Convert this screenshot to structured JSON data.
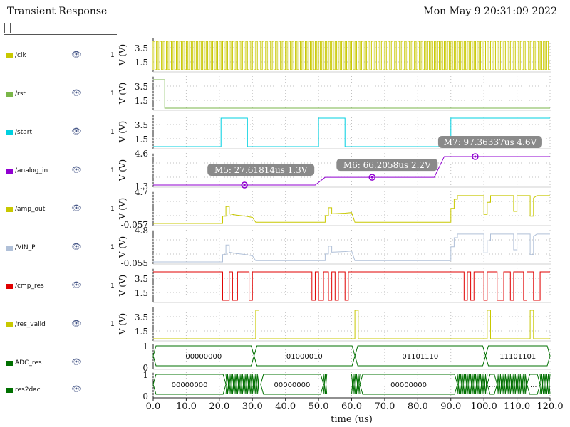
{
  "window": {
    "title": "Transient Response",
    "datetime": "Mon May 9 20:31:09 2022"
  },
  "signals": [
    {
      "name": "/clk",
      "color": "#c8c800",
      "count": "1"
    },
    {
      "name": "/rst",
      "color": "#7ab648",
      "count": "1"
    },
    {
      "name": "/start",
      "color": "#00d0e0",
      "count": "1"
    },
    {
      "name": "/analog_in",
      "color": "#9000d0",
      "count": "1"
    },
    {
      "name": "/amp_out",
      "color": "#c8c800",
      "count": "1"
    },
    {
      "name": "/VIN_P",
      "color": "#b0c0d8",
      "count": "1"
    },
    {
      "name": "/cmp_res",
      "color": "#e00000",
      "count": "1"
    },
    {
      "name": "/res_valid",
      "color": "#c8c800",
      "count": "1"
    },
    {
      "name": "ADC_res",
      "color": "#007000",
      "count": ""
    },
    {
      "name": "res2dac",
      "color": "#007000",
      "count": ""
    }
  ],
  "axes": {
    "xlabel": "time (us)",
    "xticks": [
      "0.0",
      "10.0",
      "20.0",
      "30.0",
      "40.0",
      "50.0",
      "60.0",
      "70.0",
      "80.0",
      "90.0",
      "100.0",
      "110.0",
      "120.0"
    ],
    "ylabel": "V (V)",
    "digital_ticks": [
      "3.5",
      "1.5"
    ],
    "analog_ticks": [
      [
        "4.6",
        "1.3"
      ],
      [
        "4.7",
        "-0.057"
      ],
      [
        "4.8",
        "-0.055"
      ]
    ],
    "bus_ticks": [
      "1",
      "0"
    ]
  },
  "markers": [
    {
      "label": "M5: 27.61814us 1.3V",
      "x": 27.61814,
      "y": 1.3
    },
    {
      "label": "M6: 66.2058us 2.2V",
      "x": 66.2058,
      "y": 2.2
    },
    {
      "label": "M7: 97.36337us 4.6V",
      "x": 97.36337,
      "y": 4.6
    }
  ],
  "chart_data": {
    "type": "line",
    "xlabel": "time (us)",
    "xlim": [
      0,
      120
    ],
    "series": [
      {
        "name": "/rst",
        "x": [
          0,
          3.5,
          3.5,
          120
        ],
        "y": [
          4.6,
          4.6,
          0.2,
          0.2
        ]
      },
      {
        "name": "/start",
        "x": [
          0,
          20.5,
          20.5,
          28.5,
          28.5,
          50,
          50,
          58,
          58,
          90,
          90,
          120
        ],
        "y": [
          0.2,
          0.2,
          4.6,
          4.6,
          0.2,
          0.2,
          4.6,
          4.6,
          0.2,
          0.2,
          4.6,
          4.6
        ]
      },
      {
        "name": "/analog_in",
        "x": [
          0,
          49,
          52,
          85,
          88,
          120
        ],
        "y": [
          1.3,
          1.3,
          2.2,
          2.2,
          4.6,
          4.6
        ]
      },
      {
        "name": "/res_valid",
        "x": [
          0,
          31,
          31,
          32,
          32,
          61,
          61,
          62,
          62,
          101,
          101,
          102,
          102,
          114,
          114,
          115,
          115,
          120
        ],
        "y": [
          0.2,
          0.2,
          4.6,
          4.6,
          0.2,
          0.2,
          4.6,
          4.6,
          0.2,
          0.2,
          4.6,
          4.6,
          0.2,
          0.2,
          4.6,
          4.6,
          0.2,
          0.2
        ]
      }
    ],
    "buses": [
      {
        "name": "ADC_res",
        "segments": [
          {
            "from": 0,
            "to": 30.5,
            "text": "00000000"
          },
          {
            "from": 30.5,
            "to": 61,
            "text": "01000010"
          },
          {
            "from": 61,
            "to": 100.5,
            "text": "01101110"
          },
          {
            "from": 100.5,
            "to": 120,
            "text": "11101101"
          }
        ]
      },
      {
        "name": "res2dac",
        "segments": [
          {
            "from": 0,
            "to": 22,
            "text": "00000000"
          },
          {
            "from": 32.5,
            "to": 51.5,
            "text": "00000000"
          },
          {
            "from": 62.5,
            "to": 92,
            "text": "00000000"
          },
          {
            "from": 101,
            "to": 104,
            "text": "..."
          },
          {
            "from": 113,
            "to": 117,
            "text": "..."
          }
        ]
      }
    ],
    "markers": [
      {
        "x": 27.61814,
        "y": 1.3
      },
      {
        "x": 66.2058,
        "y": 2.2
      },
      {
        "x": 97.36337,
        "y": 4.6
      }
    ]
  },
  "colors": {
    "grid": "#b0b0b0",
    "marker": "#9000d0",
    "callout": "#8a8a8a"
  }
}
